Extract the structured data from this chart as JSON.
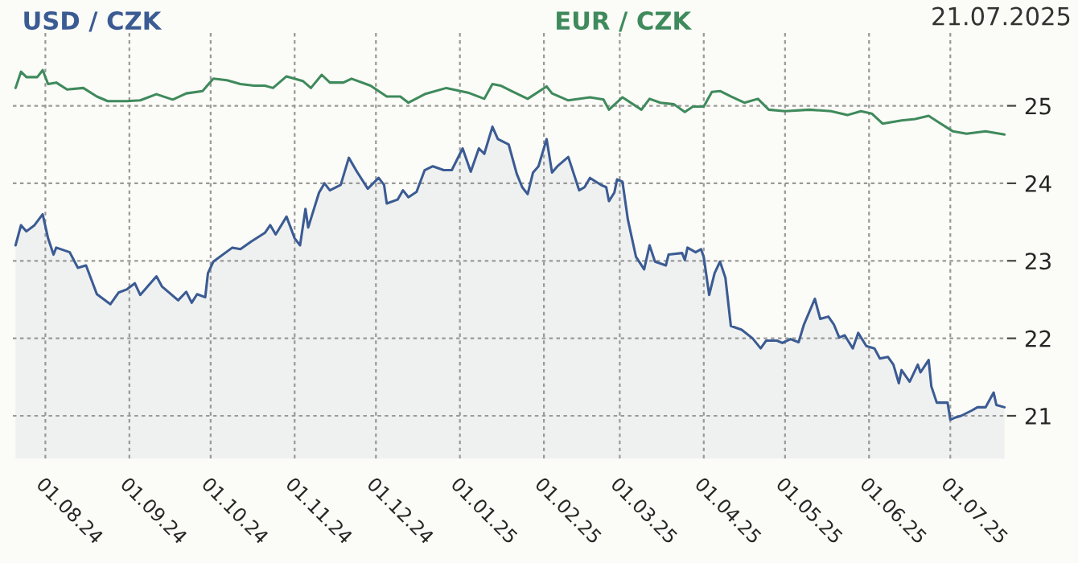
{
  "chart_data": {
    "type": "line",
    "title": "21.07.2025",
    "legend": "top",
    "grid": true,
    "marker": "none",
    "line_style": "solid",
    "xlim": [
      "2024-07-20",
      "2025-07-22"
    ],
    "ylim": [
      20.45,
      25.95
    ],
    "xticks": [
      {
        "value": "2024-08-01",
        "label": "01.08.24"
      },
      {
        "value": "2024-09-01",
        "label": "01.09.24"
      },
      {
        "value": "2024-10-01",
        "label": "01.10.24"
      },
      {
        "value": "2024-11-01",
        "label": "01.11.24"
      },
      {
        "value": "2024-12-01",
        "label": "01.12.24"
      },
      {
        "value": "2025-01-01",
        "label": "01.01.25"
      },
      {
        "value": "2025-02-01",
        "label": "01.02.25"
      },
      {
        "value": "2025-03-01",
        "label": "01.03.25"
      },
      {
        "value": "2025-04-01",
        "label": "01.04.25"
      },
      {
        "value": "2025-05-01",
        "label": "01.05.25"
      },
      {
        "value": "2025-06-01",
        "label": "01.06.25"
      },
      {
        "value": "2025-07-01",
        "label": "01.07.25"
      }
    ],
    "yticks": [
      21,
      22,
      23,
      24,
      25
    ],
    "series": [
      {
        "name": "USD / CZK",
        "type": "area",
        "color": "#3b5b93",
        "x": [
          "2024-07-21",
          "2024-07-23",
          "2024-07-25",
          "2024-07-28",
          "2024-07-31",
          "2024-08-02",
          "2024-08-04",
          "2024-08-05",
          "2024-08-10",
          "2024-08-13",
          "2024-08-16",
          "2024-08-20",
          "2024-08-25",
          "2024-08-28",
          "2024-08-31",
          "2024-09-03",
          "2024-09-05",
          "2024-09-11",
          "2024-09-13",
          "2024-09-19",
          "2024-09-22",
          "2024-09-24",
          "2024-09-26",
          "2024-09-29",
          "2024-09-30",
          "2024-10-02",
          "2024-10-09",
          "2024-10-12",
          "2024-10-16",
          "2024-10-21",
          "2024-10-23",
          "2024-10-25",
          "2024-10-29",
          "2024-11-01",
          "2024-11-03",
          "2024-11-05",
          "2024-11-06",
          "2024-11-10",
          "2024-11-12",
          "2024-11-14",
          "2024-11-18",
          "2024-11-21",
          "2024-11-24",
          "2024-11-28",
          "2024-12-02",
          "2024-12-04",
          "2024-12-05",
          "2024-12-09",
          "2024-12-11",
          "2024-12-13",
          "2024-12-16",
          "2024-12-19",
          "2024-12-22",
          "2024-12-26",
          "2024-12-29",
          "2025-01-02",
          "2025-01-05",
          "2025-01-08",
          "2025-01-10",
          "2025-01-13",
          "2025-01-15",
          "2025-01-19",
          "2025-01-22",
          "2025-01-24",
          "2025-01-26",
          "2025-01-28",
          "2025-01-30",
          "2025-02-02",
          "2025-02-04",
          "2025-02-06",
          "2025-02-10",
          "2025-02-14",
          "2025-02-16",
          "2025-02-18",
          "2025-02-22",
          "2025-02-24",
          "2025-02-25",
          "2025-02-27",
          "2025-02-28",
          "2025-03-02",
          "2025-03-04",
          "2025-03-07",
          "2025-03-10",
          "2025-03-12",
          "2025-03-14",
          "2025-03-18",
          "2025-03-19",
          "2025-03-24",
          "2025-03-25",
          "2025-03-26",
          "2025-03-29",
          "2025-03-31",
          "2025-04-01",
          "2025-04-03",
          "2025-04-05",
          "2025-04-07",
          "2025-04-09",
          "2025-04-11",
          "2025-04-15",
          "2025-04-19",
          "2025-04-22",
          "2025-04-24",
          "2025-04-28",
          "2025-04-30",
          "2025-05-03",
          "2025-05-06",
          "2025-05-08",
          "2025-05-12",
          "2025-05-14",
          "2025-05-17",
          "2025-05-19",
          "2025-05-21",
          "2025-05-23",
          "2025-05-26",
          "2025-05-28",
          "2025-05-31",
          "2025-06-03",
          "2025-06-05",
          "2025-06-08",
          "2025-06-10",
          "2025-06-12",
          "2025-06-13",
          "2025-06-16",
          "2025-06-19",
          "2025-06-20",
          "2025-06-23",
          "2025-06-24",
          "2025-06-26",
          "2025-06-30",
          "2025-07-01",
          "2025-07-03",
          "2025-07-05",
          "2025-07-09",
          "2025-07-11",
          "2025-07-14",
          "2025-07-17",
          "2025-07-18",
          "2025-07-21"
        ],
        "values": [
          23.2,
          23.46,
          23.38,
          23.46,
          23.6,
          23.29,
          23.08,
          23.17,
          23.11,
          22.91,
          22.94,
          22.57,
          22.44,
          22.59,
          22.63,
          22.71,
          22.56,
          22.8,
          22.67,
          22.49,
          22.6,
          22.46,
          22.57,
          22.53,
          22.84,
          22.99,
          23.17,
          23.15,
          23.25,
          23.36,
          23.46,
          23.34,
          23.57,
          23.29,
          23.2,
          23.67,
          23.43,
          23.88,
          24.0,
          23.91,
          23.98,
          24.33,
          24.15,
          23.93,
          24.07,
          23.98,
          23.74,
          23.79,
          23.91,
          23.82,
          23.89,
          24.17,
          24.22,
          24.17,
          24.17,
          24.45,
          24.15,
          24.45,
          24.38,
          24.73,
          24.57,
          24.5,
          24.12,
          23.95,
          23.86,
          24.14,
          24.22,
          24.57,
          24.14,
          24.22,
          24.34,
          23.91,
          23.95,
          24.07,
          23.98,
          23.95,
          23.77,
          23.88,
          24.05,
          24.02,
          23.53,
          23.05,
          22.89,
          23.2,
          22.99,
          22.94,
          23.08,
          23.1,
          23.01,
          23.17,
          23.11,
          23.15,
          23.05,
          22.56,
          22.84,
          22.99,
          22.78,
          22.16,
          22.11,
          22.0,
          21.87,
          21.97,
          21.97,
          21.94,
          21.99,
          21.95,
          22.18,
          22.51,
          22.25,
          22.28,
          22.18,
          22.01,
          22.04,
          21.87,
          22.07,
          21.9,
          21.87,
          21.74,
          21.76,
          21.66,
          21.42,
          21.59,
          21.44,
          21.66,
          21.56,
          21.72,
          21.38,
          21.17,
          21.17,
          20.95,
          20.98,
          21.0,
          21.07,
          21.11,
          21.11,
          21.3,
          21.14,
          21.11
        ]
      },
      {
        "name": "EUR / CZK",
        "color": "#3f8a5c",
        "x": [
          "2024-07-21",
          "2024-07-23",
          "2024-07-25",
          "2024-07-29",
          "2024-07-31",
          "2024-08-02",
          "2024-08-05",
          "2024-08-09",
          "2024-08-15",
          "2024-08-20",
          "2024-08-24",
          "2024-08-31",
          "2024-09-05",
          "2024-09-11",
          "2024-09-17",
          "2024-09-22",
          "2024-09-28",
          "2024-10-02",
          "2024-10-07",
          "2024-10-12",
          "2024-10-17",
          "2024-10-21",
          "2024-10-24",
          "2024-10-29",
          "2024-11-04",
          "2024-11-07",
          "2024-11-11",
          "2024-11-14",
          "2024-11-19",
          "2024-11-22",
          "2024-11-29",
          "2024-12-05",
          "2024-12-10",
          "2024-12-13",
          "2024-12-19",
          "2024-12-27",
          "2025-01-04",
          "2025-01-10",
          "2025-01-13",
          "2025-01-16",
          "2025-01-20",
          "2025-01-26",
          "2025-02-02",
          "2025-02-04",
          "2025-02-10",
          "2025-02-18",
          "2025-02-23",
          "2025-02-25",
          "2025-03-02",
          "2025-03-09",
          "2025-03-12",
          "2025-03-16",
          "2025-03-21",
          "2025-03-25",
          "2025-03-28",
          "2025-04-01",
          "2025-04-04",
          "2025-04-07",
          "2025-04-11",
          "2025-04-16",
          "2025-04-21",
          "2025-04-25",
          "2025-05-01",
          "2025-05-10",
          "2025-05-18",
          "2025-05-24",
          "2025-05-29",
          "2025-06-02",
          "2025-06-06",
          "2025-06-13",
          "2025-06-18",
          "2025-06-23",
          "2025-06-27",
          "2025-07-02",
          "2025-07-07",
          "2025-07-14",
          "2025-07-21"
        ],
        "values": [
          25.23,
          25.44,
          25.37,
          25.37,
          25.46,
          25.28,
          25.3,
          25.21,
          25.23,
          25.12,
          25.06,
          25.06,
          25.07,
          25.15,
          25.08,
          25.16,
          25.19,
          25.35,
          25.33,
          25.28,
          25.26,
          25.26,
          25.23,
          25.38,
          25.32,
          25.23,
          25.4,
          25.3,
          25.3,
          25.35,
          25.26,
          25.12,
          25.12,
          25.04,
          25.15,
          25.23,
          25.17,
          25.09,
          25.28,
          25.26,
          25.19,
          25.09,
          25.25,
          25.16,
          25.07,
          25.11,
          25.08,
          24.95,
          25.11,
          24.95,
          25.09,
          25.04,
          25.02,
          24.92,
          24.99,
          24.99,
          25.18,
          25.19,
          25.12,
          25.04,
          25.09,
          24.95,
          24.93,
          24.95,
          24.93,
          24.88,
          24.93,
          24.9,
          24.77,
          24.81,
          24.83,
          24.87,
          24.78,
          24.67,
          24.64,
          24.67,
          24.63
        ]
      }
    ]
  }
}
